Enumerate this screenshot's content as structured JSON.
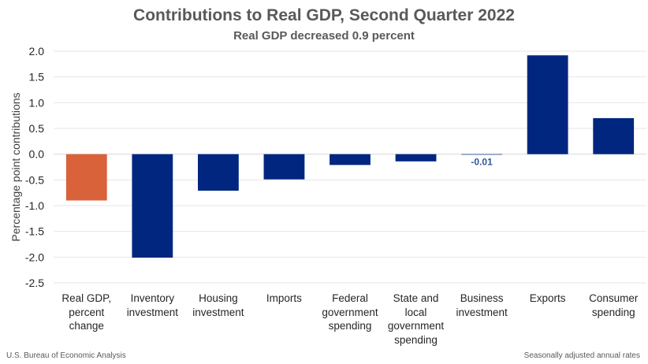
{
  "chart_data": {
    "type": "bar",
    "title": "Contributions to Real GDP, Second Quarter 2022",
    "subtitle": "Real GDP decreased 0.9 percent",
    "xlabel": "",
    "ylabel": "Percentage point contributions",
    "ylim": [
      -2.5,
      2.0
    ],
    "yticks": [
      2.0,
      1.5,
      1.0,
      0.5,
      0.0,
      -0.5,
      -1.0,
      -1.5,
      -2.0,
      -2.5
    ],
    "ytick_labels": [
      "2.0",
      "1.5",
      "1.0",
      "0.5",
      "0.0",
      "-0.5",
      "-1.0",
      "-1.5",
      "-2.0",
      "-2.5"
    ],
    "grid": true,
    "categories": [
      "Real GDP,\npercent\nchange",
      "Inventory\ninvestment",
      "Housing\ninvestment",
      "Imports",
      "Federal\ngovernment\nspending",
      "State and\nlocal\ngovernment\nspending",
      "Business\ninvestment",
      "Exports",
      "Consumer\nspending"
    ],
    "values": [
      -0.9,
      -2.01,
      -0.71,
      -0.49,
      -0.21,
      -0.14,
      -0.01,
      1.92,
      0.7
    ],
    "bar_colors": [
      "#D9623B",
      "#00267F",
      "#00267F",
      "#00267F",
      "#00267F",
      "#00267F",
      "#00267F",
      "#00267F",
      "#00267F"
    ],
    "annotations": [
      {
        "category_index": 6,
        "text": "-0.01",
        "color": "#2F5597"
      }
    ],
    "colors": {
      "highlight": "#D9623B",
      "primary": "#00267F",
      "grid": "#E6E6E6",
      "text": "#595959"
    }
  },
  "footer": {
    "source": "U.S. Bureau of Economic Analysis",
    "note": "Seasonally adjusted annual rates"
  }
}
